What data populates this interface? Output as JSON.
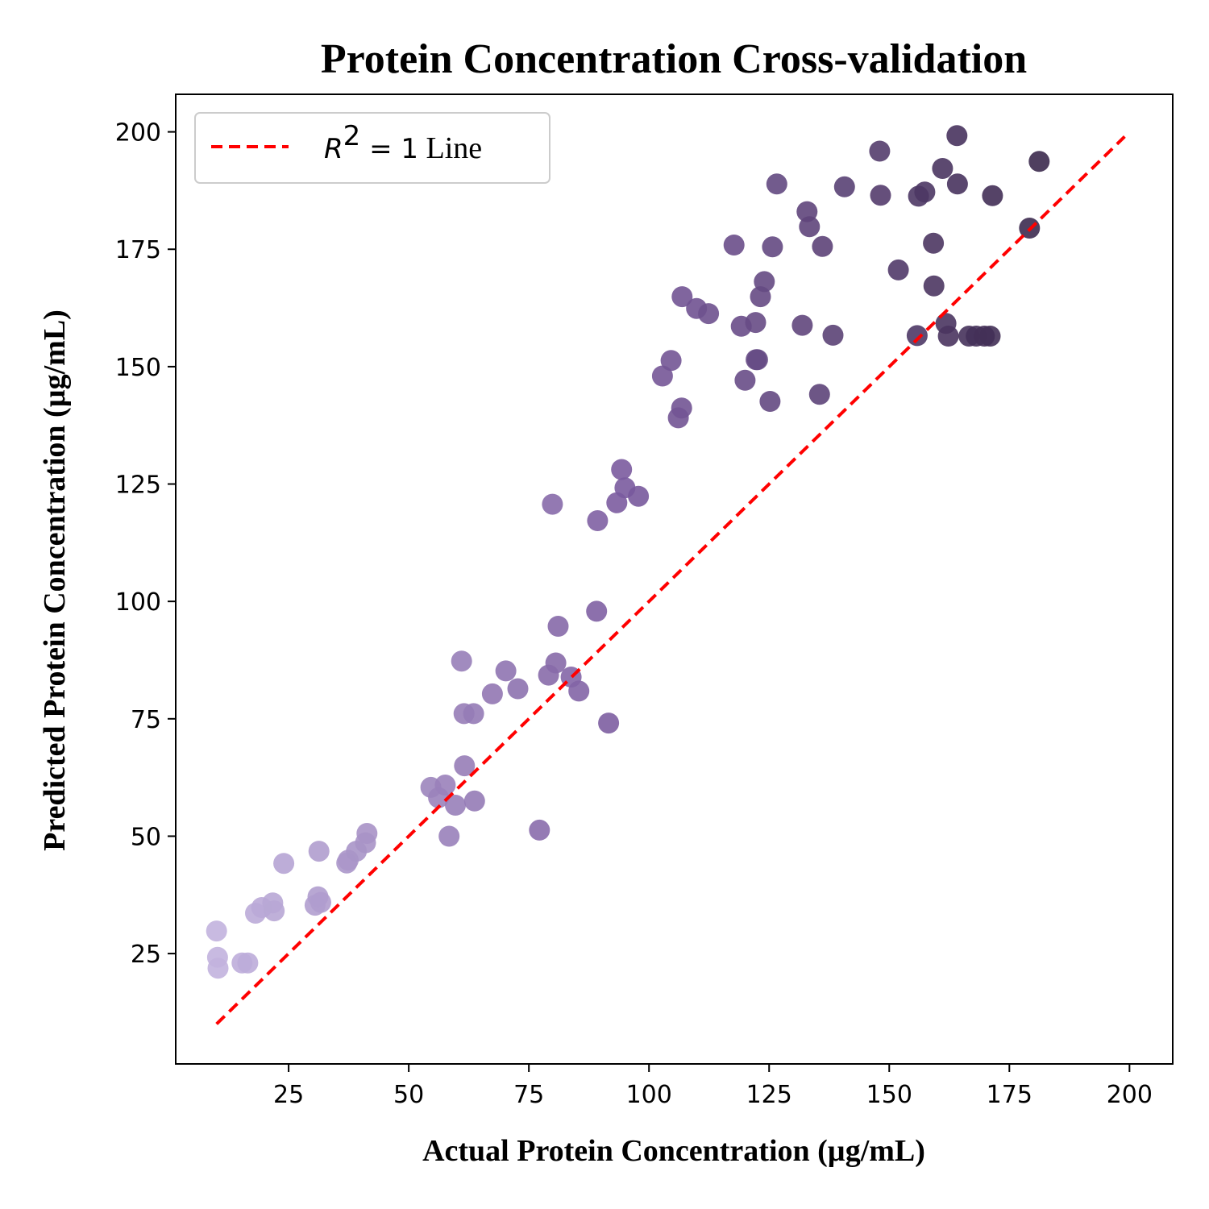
{
  "chart_data": {
    "type": "scatter",
    "title": "Protein Concentration Cross-validation",
    "xlabel": "Actual Protein Concentration (µg/mL)",
    "ylabel": "Predicted Protein Concentration (µg/mL)",
    "xlim": [
      1.5,
      209
    ],
    "ylim": [
      1.5,
      208
    ],
    "xticks": [
      25,
      50,
      75,
      100,
      125,
      150,
      175,
      200
    ],
    "yticks": [
      25,
      50,
      75,
      100,
      125,
      150,
      175,
      200
    ],
    "grid": false,
    "legend_position": "top-left",
    "legend": {
      "math_r": "R",
      "math_exp": "2",
      "math_rest": " = 1",
      "text": " Line"
    },
    "colors": {
      "ideal_line": "#ff0000",
      "point_light": "#c2b3de",
      "point_mid": "#7a5a9e",
      "point_dark": "#3c2a4e",
      "axes": "#000000",
      "legend_border": "#cccccc"
    },
    "ideal_line": {
      "x": [
        10,
        199
      ],
      "y": [
        10,
        199
      ]
    },
    "points": [
      [
        10,
        29.8
      ],
      [
        10.2,
        24.2
      ],
      [
        10.3,
        21.9
      ],
      [
        15.3,
        23
      ],
      [
        16.5,
        23
      ],
      [
        18.1,
        33.6
      ],
      [
        19.4,
        34.8
      ],
      [
        21.7,
        35.8
      ],
      [
        22,
        34.1
      ],
      [
        24,
        44.2
      ],
      [
        30.5,
        35.3
      ],
      [
        31.1,
        37.1
      ],
      [
        31.7,
        35.9
      ],
      [
        31.3,
        46.8
      ],
      [
        37.1,
        44.3
      ],
      [
        37.4,
        44.9
      ],
      [
        39.1,
        46.8
      ],
      [
        41,
        48.6
      ],
      [
        41.3,
        50.6
      ],
      [
        54.6,
        60.4
      ],
      [
        56.2,
        58.2
      ],
      [
        57.6,
        60.9
      ],
      [
        58.4,
        50
      ],
      [
        59.7,
        56.6
      ],
      [
        61,
        87.3
      ],
      [
        61.6,
        65
      ],
      [
        61.5,
        76.1
      ],
      [
        63.5,
        76.1
      ],
      [
        63.7,
        57.5
      ],
      [
        67.4,
        80.3
      ],
      [
        70.2,
        85.2
      ],
      [
        72.7,
        81.4
      ],
      [
        77.2,
        51.3
      ],
      [
        79.1,
        84.3
      ],
      [
        79.9,
        120.7
      ],
      [
        80.6,
        86.9
      ],
      [
        81.1,
        94.7
      ],
      [
        83.8,
        83.9
      ],
      [
        85.4,
        80.9
      ],
      [
        89.1,
        97.9
      ],
      [
        89.3,
        117.2
      ],
      [
        91.6,
        74.1
      ],
      [
        93.3,
        121
      ],
      [
        94.3,
        128.1
      ],
      [
        95,
        124.2
      ],
      [
        97.8,
        122.4
      ],
      [
        102.8,
        148
      ],
      [
        104.6,
        151.3
      ],
      [
        106.1,
        139.1
      ],
      [
        106.8,
        141.2
      ],
      [
        106.9,
        164.9
      ],
      [
        109.9,
        162.4
      ],
      [
        112.4,
        161.3
      ],
      [
        117.7,
        175.9
      ],
      [
        119.2,
        158.6
      ],
      [
        120,
        147.1
      ],
      [
        122.2,
        159.4
      ],
      [
        122.3,
        151.5
      ],
      [
        122.6,
        151.5
      ],
      [
        123.2,
        164.9
      ],
      [
        124,
        168.1
      ],
      [
        125.2,
        142.6
      ],
      [
        125.7,
        175.5
      ],
      [
        126.6,
        188.9
      ],
      [
        131.9,
        158.8
      ],
      [
        132.9,
        183
      ],
      [
        133.4,
        179.8
      ],
      [
        135.5,
        144.1
      ],
      [
        136.1,
        175.6
      ],
      [
        138.3,
        156.7
      ],
      [
        140.7,
        188.3
      ],
      [
        148,
        195.9
      ],
      [
        148.2,
        186.5
      ],
      [
        151.9,
        170.6
      ],
      [
        155.8,
        156.6
      ],
      [
        156.1,
        186.3
      ],
      [
        157.4,
        187.2
      ],
      [
        159.2,
        176.3
      ],
      [
        159.3,
        167.2
      ],
      [
        161.1,
        192.2
      ],
      [
        161.8,
        159.2
      ],
      [
        162.3,
        156.5
      ],
      [
        164.1,
        199.2
      ],
      [
        164.2,
        188.9
      ],
      [
        166.6,
        156.5
      ],
      [
        168.1,
        156.5
      ],
      [
        169.8,
        156.5
      ],
      [
        171,
        156.5
      ],
      [
        171.5,
        186.4
      ],
      [
        179.2,
        179.5
      ],
      [
        181.2,
        193.7
      ]
    ]
  }
}
